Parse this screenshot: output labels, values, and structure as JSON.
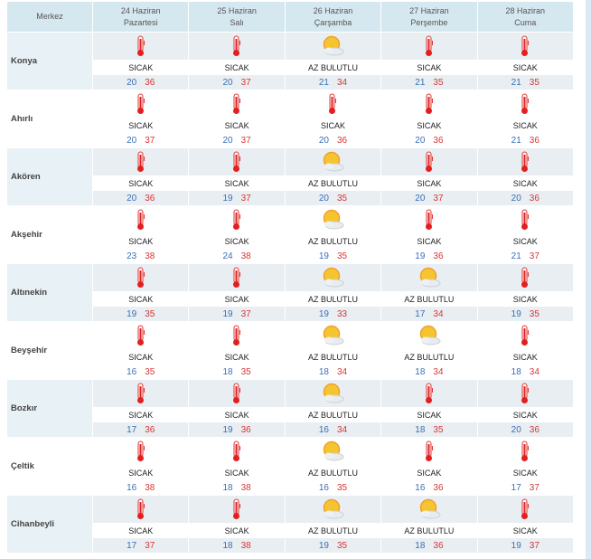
{
  "header": {
    "location_label": "Merkez",
    "days": [
      {
        "date": "24 Haziran",
        "weekday": "Pazartesi"
      },
      {
        "date": "25 Haziran",
        "weekday": "Salı"
      },
      {
        "date": "26 Haziran",
        "weekday": "Çarşamba"
      },
      {
        "date": "27 Haziran",
        "weekday": "Perşembe"
      },
      {
        "date": "28 Haziran",
        "weekday": "Cuma"
      }
    ]
  },
  "colors": {
    "min": "#3a6fb5",
    "max": "#d93535",
    "header_bg": "#d5e8ef"
  },
  "cities": [
    {
      "name": "Konya",
      "days": [
        {
          "icon": "thermometer-icon",
          "cond": "SICAK",
          "min": "20",
          "max": "36"
        },
        {
          "icon": "thermometer-icon",
          "cond": "SICAK",
          "min": "20",
          "max": "37"
        },
        {
          "icon": "partly-cloudy-icon",
          "cond": "AZ BULUTLU",
          "min": "21",
          "max": "34"
        },
        {
          "icon": "thermometer-icon",
          "cond": "SICAK",
          "min": "21",
          "max": "35"
        },
        {
          "icon": "thermometer-icon",
          "cond": "SICAK",
          "min": "21",
          "max": "35"
        }
      ]
    },
    {
      "name": "Ahırlı",
      "days": [
        {
          "icon": "thermometer-icon",
          "cond": "SICAK",
          "min": "20",
          "max": "37"
        },
        {
          "icon": "thermometer-icon",
          "cond": "SICAK",
          "min": "20",
          "max": "37"
        },
        {
          "icon": "thermometer-icon",
          "cond": "SICAK",
          "min": "20",
          "max": "36"
        },
        {
          "icon": "thermometer-icon",
          "cond": "SICAK",
          "min": "20",
          "max": "36"
        },
        {
          "icon": "thermometer-icon",
          "cond": "SICAK",
          "min": "21",
          "max": "36"
        }
      ]
    },
    {
      "name": "Akören",
      "days": [
        {
          "icon": "thermometer-icon",
          "cond": "SICAK",
          "min": "20",
          "max": "36"
        },
        {
          "icon": "thermometer-icon",
          "cond": "SICAK",
          "min": "19",
          "max": "37"
        },
        {
          "icon": "partly-cloudy-icon",
          "cond": "AZ BULUTLU",
          "min": "20",
          "max": "35"
        },
        {
          "icon": "thermometer-icon",
          "cond": "SICAK",
          "min": "20",
          "max": "37"
        },
        {
          "icon": "thermometer-icon",
          "cond": "SICAK",
          "min": "20",
          "max": "36"
        }
      ]
    },
    {
      "name": "Akşehir",
      "days": [
        {
          "icon": "thermometer-icon",
          "cond": "SICAK",
          "min": "23",
          "max": "38"
        },
        {
          "icon": "thermometer-icon",
          "cond": "SICAK",
          "min": "24",
          "max": "38"
        },
        {
          "icon": "partly-cloudy-icon",
          "cond": "AZ BULUTLU",
          "min": "19",
          "max": "35"
        },
        {
          "icon": "thermometer-icon",
          "cond": "SICAK",
          "min": "19",
          "max": "36"
        },
        {
          "icon": "thermometer-icon",
          "cond": "SICAK",
          "min": "21",
          "max": "37"
        }
      ]
    },
    {
      "name": "Altınekin",
      "days": [
        {
          "icon": "thermometer-icon",
          "cond": "SICAK",
          "min": "19",
          "max": "35"
        },
        {
          "icon": "thermometer-icon",
          "cond": "SICAK",
          "min": "19",
          "max": "37"
        },
        {
          "icon": "partly-cloudy-icon",
          "cond": "AZ BULUTLU",
          "min": "19",
          "max": "33"
        },
        {
          "icon": "partly-cloudy-icon",
          "cond": "AZ BULUTLU",
          "min": "17",
          "max": "34"
        },
        {
          "icon": "thermometer-icon",
          "cond": "SICAK",
          "min": "19",
          "max": "35"
        }
      ]
    },
    {
      "name": "Beyşehir",
      "days": [
        {
          "icon": "thermometer-icon",
          "cond": "SICAK",
          "min": "16",
          "max": "35"
        },
        {
          "icon": "thermometer-icon",
          "cond": "SICAK",
          "min": "18",
          "max": "35"
        },
        {
          "icon": "partly-cloudy-icon",
          "cond": "AZ BULUTLU",
          "min": "18",
          "max": "34"
        },
        {
          "icon": "partly-cloudy-icon",
          "cond": "AZ BULUTLU",
          "min": "18",
          "max": "34"
        },
        {
          "icon": "thermometer-icon",
          "cond": "SICAK",
          "min": "18",
          "max": "34"
        }
      ]
    },
    {
      "name": "Bozkır",
      "days": [
        {
          "icon": "thermometer-icon",
          "cond": "SICAK",
          "min": "17",
          "max": "36"
        },
        {
          "icon": "thermometer-icon",
          "cond": "SICAK",
          "min": "19",
          "max": "36"
        },
        {
          "icon": "partly-cloudy-icon",
          "cond": "AZ BULUTLU",
          "min": "16",
          "max": "34"
        },
        {
          "icon": "thermometer-icon",
          "cond": "SICAK",
          "min": "18",
          "max": "35"
        },
        {
          "icon": "thermometer-icon",
          "cond": "SICAK",
          "min": "20",
          "max": "36"
        }
      ]
    },
    {
      "name": "Çeltik",
      "days": [
        {
          "icon": "thermometer-icon",
          "cond": "SICAK",
          "min": "16",
          "max": "38"
        },
        {
          "icon": "thermometer-icon",
          "cond": "SICAK",
          "min": "18",
          "max": "38"
        },
        {
          "icon": "partly-cloudy-icon",
          "cond": "AZ BULUTLU",
          "min": "16",
          "max": "35"
        },
        {
          "icon": "thermometer-icon",
          "cond": "SICAK",
          "min": "16",
          "max": "36"
        },
        {
          "icon": "thermometer-icon",
          "cond": "SICAK",
          "min": "17",
          "max": "37"
        }
      ]
    },
    {
      "name": "Cihanbeyli",
      "days": [
        {
          "icon": "thermometer-icon",
          "cond": "SICAK",
          "min": "17",
          "max": "37"
        },
        {
          "icon": "thermometer-icon",
          "cond": "SICAK",
          "min": "18",
          "max": "38"
        },
        {
          "icon": "partly-cloudy-icon",
          "cond": "AZ BULUTLU",
          "min": "19",
          "max": "35"
        },
        {
          "icon": "partly-cloudy-icon",
          "cond": "AZ BULUTLU",
          "min": "18",
          "max": "36"
        },
        {
          "icon": "thermometer-icon",
          "cond": "SICAK",
          "min": "19",
          "max": "37"
        }
      ]
    }
  ]
}
